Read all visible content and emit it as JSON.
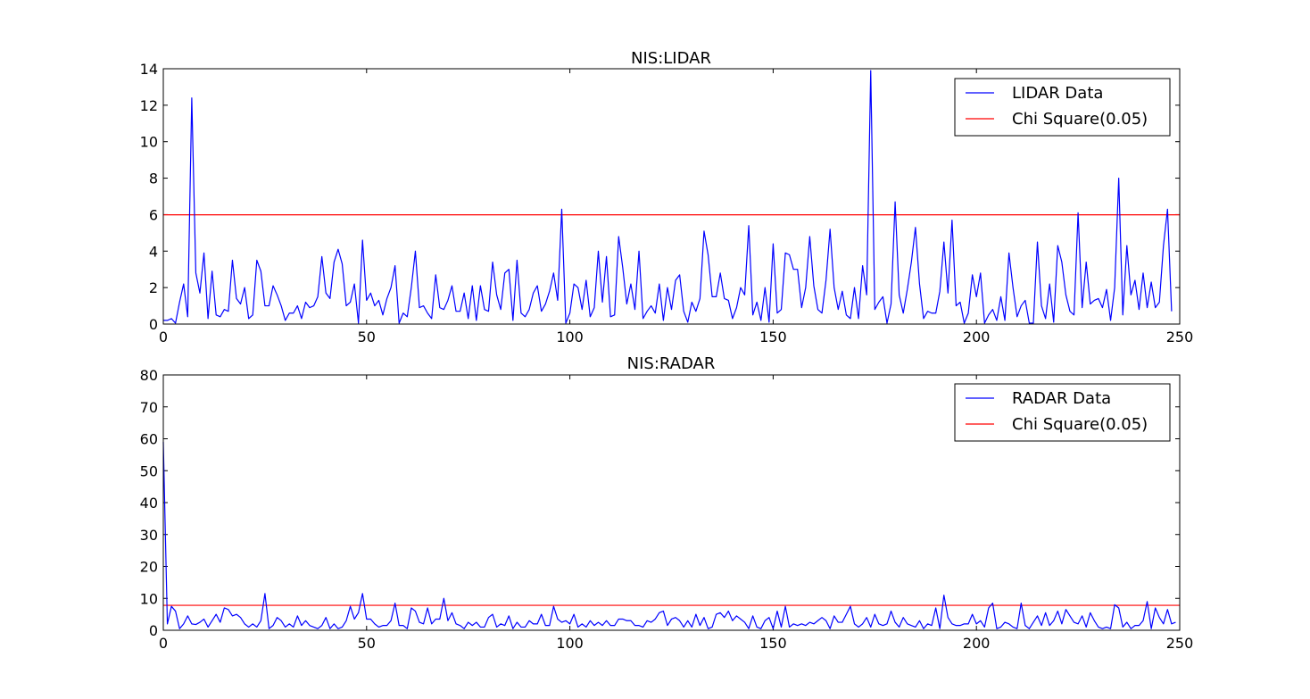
{
  "chart_data": [
    {
      "type": "line",
      "title": "NIS:LIDAR",
      "xlabel": "",
      "ylabel": "",
      "xlim": [
        0,
        250
      ],
      "ylim": [
        0,
        14
      ],
      "xticks": [
        0,
        50,
        100,
        150,
        200,
        250
      ],
      "yticks": [
        0,
        2,
        4,
        6,
        8,
        10,
        12,
        14
      ],
      "grid": false,
      "legend_position": "top-right",
      "series": [
        {
          "name": "LIDAR Data",
          "color": "#0000ff",
          "x_start": 0,
          "x_step": 1,
          "values": [
            0.2,
            0.2,
            0.3,
            0.05,
            1.2,
            2.2,
            0.4,
            12.4,
            2.8,
            1.7,
            3.9,
            0.3,
            2.9,
            0.5,
            0.4,
            0.8,
            0.7,
            3.5,
            1.4,
            1.1,
            2.0,
            0.3,
            0.5,
            3.5,
            2.9,
            1.0,
            1.0,
            2.1,
            1.6,
            1.0,
            0.2,
            0.6,
            0.6,
            1.0,
            0.3,
            1.2,
            0.9,
            1.0,
            1.5,
            3.7,
            1.7,
            1.4,
            3.4,
            4.1,
            3.3,
            1.0,
            1.2,
            2.2,
            0.05,
            4.6,
            1.3,
            1.7,
            1.0,
            1.3,
            0.5,
            1.4,
            2.0,
            3.2,
            0.05,
            0.6,
            0.4,
            2.0,
            4.0,
            0.9,
            1.0,
            0.6,
            0.3,
            2.7,
            0.9,
            0.8,
            1.3,
            2.1,
            0.7,
            0.7,
            1.7,
            0.3,
            2.1,
            0.2,
            2.1,
            0.8,
            0.7,
            3.4,
            1.6,
            0.8,
            2.8,
            3.0,
            0.2,
            3.5,
            0.6,
            0.4,
            0.8,
            1.7,
            2.1,
            0.7,
            1.1,
            1.8,
            2.8,
            1.3,
            6.3,
            0.05,
            0.6,
            2.2,
            2.0,
            0.8,
            2.4,
            0.4,
            0.9,
            4.0,
            1.2,
            3.7,
            0.4,
            0.5,
            4.8,
            3.1,
            1.1,
            2.2,
            0.8,
            4.0,
            0.3,
            0.7,
            1.0,
            0.6,
            2.2,
            0.2,
            2.0,
            0.8,
            2.4,
            2.7,
            0.7,
            0.1,
            1.2,
            0.7,
            1.4,
            5.1,
            3.8,
            1.5,
            1.5,
            2.8,
            1.4,
            1.3,
            0.3,
            0.9,
            2.0,
            1.6,
            5.4,
            0.5,
            1.2,
            0.2,
            2.0,
            0.1,
            4.4,
            0.6,
            0.8,
            3.9,
            3.8,
            3.0,
            3.0,
            0.9,
            2.0,
            4.8,
            2.1,
            0.8,
            0.6,
            2.4,
            5.2,
            2.0,
            0.8,
            1.8,
            0.5,
            0.3,
            2.0,
            0.3,
            3.2,
            1.6,
            13.9,
            0.8,
            1.2,
            1.5,
            0.05,
            1.1,
            6.7,
            1.6,
            0.6,
            1.9,
            3.4,
            5.3,
            2.2,
            0.3,
            0.7,
            0.6,
            0.6,
            1.8,
            4.5,
            1.7,
            5.7,
            1.0,
            1.2,
            0.05,
            0.6,
            2.7,
            1.5,
            2.8,
            0.05,
            0.5,
            0.8,
            0.2,
            1.5,
            0.2,
            3.9,
            2.0,
            0.4,
            1.0,
            1.3,
            0.05,
            0.05,
            4.5,
            1.0,
            0.3,
            2.2,
            0.1,
            4.3,
            3.4,
            1.6,
            0.7,
            0.5,
            6.1,
            0.9,
            3.4,
            1.1,
            1.3,
            1.4,
            0.9,
            1.9,
            0.2,
            2.0,
            8.0,
            0.5,
            4.3,
            1.6,
            2.4,
            0.8,
            2.8,
            0.9,
            2.3,
            0.9,
            1.2,
            4.3,
            6.3,
            0.7
          ]
        },
        {
          "name": "Chi Square(0.05)",
          "color": "#ff0000",
          "constant": 5.991
        }
      ]
    },
    {
      "type": "line",
      "title": "NIS:RADAR",
      "xlabel": "",
      "ylabel": "",
      "xlim": [
        0,
        250
      ],
      "ylim": [
        0,
        80
      ],
      "xticks": [
        0,
        50,
        100,
        150,
        200,
        250
      ],
      "yticks": [
        0,
        10,
        20,
        30,
        40,
        50,
        60,
        70,
        80
      ],
      "grid": false,
      "legend_position": "top-right",
      "series": [
        {
          "name": "RADAR Data",
          "color": "#0000ff",
          "x_start": 0,
          "x_step": 1,
          "values": [
            59,
            2,
            7.5,
            6,
            0.5,
            2,
            4.5,
            2,
            1.8,
            2.5,
            3.5,
            1,
            3,
            5,
            2.5,
            7,
            6.5,
            4.5,
            5,
            4,
            2,
            1,
            2,
            1,
            3,
            11.5,
            0.5,
            1.5,
            4,
            3,
            1,
            2,
            1,
            4.5,
            1.5,
            3,
            1.5,
            1,
            0.5,
            1.5,
            4,
            0.5,
            2,
            0.5,
            1,
            3,
            7.5,
            3.5,
            5.5,
            11.5,
            3.5,
            3.5,
            2,
            1,
            1.5,
            1.5,
            3,
            8.5,
            1.5,
            1.5,
            0.5,
            7,
            6,
            2.5,
            2,
            7,
            2,
            3.5,
            3.5,
            10,
            3,
            5.5,
            2,
            1.5,
            0.5,
            2.5,
            1.5,
            2.5,
            1,
            1,
            4,
            5,
            1,
            2,
            1.5,
            4.5,
            0.5,
            2.5,
            1,
            1,
            3,
            2,
            2,
            5,
            1.5,
            1.5,
            7.5,
            3.5,
            2.5,
            3,
            2,
            5,
            1,
            2,
            1,
            3,
            1.5,
            2.5,
            1.5,
            3,
            1.5,
            1.5,
            3.5,
            3.5,
            3,
            3,
            1.5,
            1.5,
            1,
            3,
            2.5,
            3.5,
            5.5,
            6,
            1.5,
            3.5,
            4,
            3,
            1,
            3,
            1,
            5,
            1.5,
            4,
            0.5,
            1,
            5,
            5.5,
            4,
            6,
            3,
            4.5,
            3.5,
            2.5,
            0.5,
            4.5,
            1,
            0.5,
            3,
            4,
            0.5,
            6,
            1,
            7.5,
            1,
            2,
            1.5,
            2,
            1.5,
            2.5,
            2,
            3,
            4,
            3,
            0.5,
            4.5,
            2.5,
            2.5,
            5,
            7.5,
            2,
            1,
            2,
            4,
            1,
            5,
            2,
            1.5,
            2,
            6,
            2.5,
            1,
            4,
            2,
            1.5,
            1,
            3,
            0.5,
            2,
            1.5,
            7,
            0.5,
            11,
            4,
            2,
            1.5,
            1.5,
            2,
            2,
            5,
            2,
            3,
            1,
            7,
            8.5,
            0.5,
            1,
            2.5,
            2,
            1,
            0.5,
            8.5,
            1.5,
            0.5,
            2.5,
            4.5,
            1.5,
            5.5,
            1.5,
            3,
            6,
            2,
            6.5,
            4.5,
            2.5,
            2,
            4.5,
            1,
            5.5,
            3,
            1,
            0.5,
            1,
            0.5,
            8,
            7,
            1,
            2.5,
            0.5,
            1.5,
            1.5,
            3,
            9,
            0.5,
            7,
            4,
            2,
            6.5,
            2,
            2.5
          ]
        },
        {
          "name": "Chi Square(0.05)",
          "color": "#ff0000",
          "constant": 7.815
        }
      ]
    }
  ]
}
